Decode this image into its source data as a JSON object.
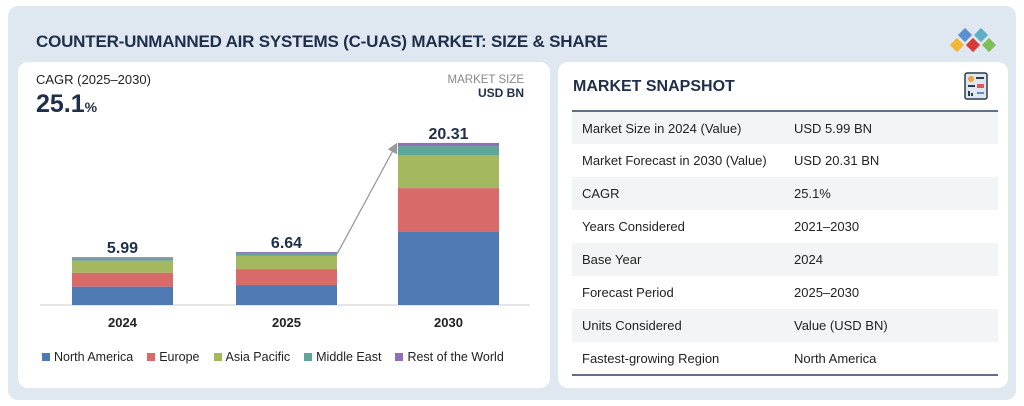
{
  "title": "COUNTER-UNMANNED AIR SYSTEMS (C-UAS) MARKET: SIZE & SHARE",
  "colors": {
    "north_america": "#4f79b3",
    "europe": "#d96a6a",
    "asia_pacific": "#a4b85f",
    "middle_east": "#5fa598",
    "rest_of_world": "#8e70b6",
    "title": "#1f2f4b"
  },
  "cagr": {
    "label": "CAGR (2025–2030)",
    "value": "25.1",
    "unit": "%"
  },
  "market_size": {
    "label": "MARKET SIZE",
    "unit": "USD BN"
  },
  "chart_data": {
    "type": "bar",
    "stacked": true,
    "categories": [
      "2024",
      "2025",
      "2030"
    ],
    "totals": [
      "5.99",
      "6.64",
      "20.31"
    ],
    "ylim": [
      0,
      21
    ],
    "grid": false,
    "legend_placement": "bottom",
    "series": [
      {
        "name": "North America",
        "values": [
          2.3,
          2.5,
          9.15
        ]
      },
      {
        "name": "Europe",
        "values": [
          1.75,
          2.0,
          5.5
        ]
      },
      {
        "name": "Asia Pacific",
        "values": [
          1.5,
          1.65,
          4.1
        ]
      },
      {
        "name": "Middle East",
        "values": [
          0.3,
          0.37,
          1.16
        ]
      },
      {
        "name": "Rest of the World",
        "values": [
          0.14,
          0.12,
          0.4
        ]
      }
    ]
  },
  "snapshot": {
    "title": "MARKET SNAPSHOT",
    "icon": "report-icon",
    "rows": [
      {
        "label": "Market Size in 2024 (Value)",
        "value": "USD 5.99 BN"
      },
      {
        "label": "Market Forecast in 2030 (Value)",
        "value": "USD 20.31 BN"
      },
      {
        "label": "CAGR",
        "value": "25.1%"
      },
      {
        "label": "Years Considered",
        "value": "2021–2030"
      },
      {
        "label": "Base Year",
        "value": "2024"
      },
      {
        "label": "Forecast Period",
        "value": "2025–2030"
      },
      {
        "label": "Units Considered",
        "value": "Value (USD BN)"
      },
      {
        "label": "Fastest-growing Region",
        "value": "North America"
      }
    ]
  }
}
